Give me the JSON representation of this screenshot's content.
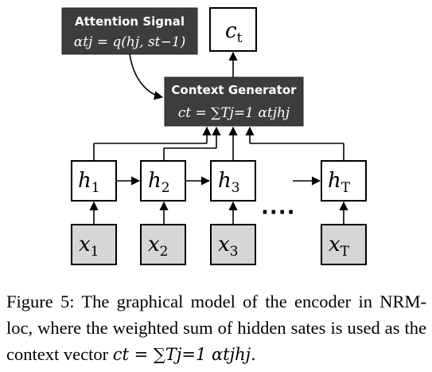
{
  "attention_box": {
    "title": "Attention Signal",
    "equation": "αtj = q(hj, st−1)"
  },
  "context_box": {
    "title": "Context Generator",
    "equation": "ct = ∑Tj=1 αtjhj"
  },
  "output_node": {
    "label": "c",
    "sub": "t"
  },
  "hidden_nodes": [
    {
      "label": "h",
      "sub": "1"
    },
    {
      "label": "h",
      "sub": "2"
    },
    {
      "label": "h",
      "sub": "3"
    },
    {
      "label": "h",
      "sub": "T"
    }
  ],
  "input_nodes": [
    {
      "label": "x",
      "sub": "1"
    },
    {
      "label": "x",
      "sub": "2"
    },
    {
      "label": "x",
      "sub": "3"
    },
    {
      "label": "x",
      "sub": "T"
    }
  ],
  "ellipsis": "····",
  "caption": {
    "text": "Figure 5: The graphical model of the encoder in NRM-loc, where the weighted sum of hidden sates is used as the context vector ",
    "formula": "ct = ∑Tj=1 αtjhj."
  },
  "colors": {
    "dark_box": "#3d3d3d",
    "input_fill": "#d6d6d6"
  }
}
